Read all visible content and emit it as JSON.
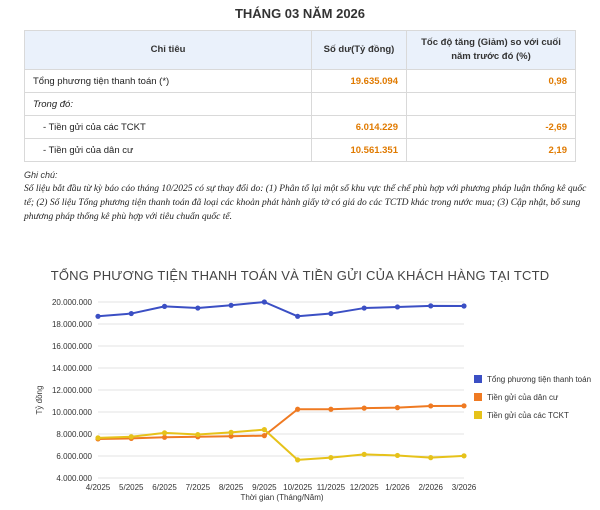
{
  "page_title": "THÁNG 03 NĂM 2026",
  "table": {
    "headers": [
      "Chỉ tiêu",
      "Số dư(Tỷ đồng)",
      "Tốc độ tăng (Giảm) so với cuối năm trước đó (%)"
    ],
    "rows": [
      {
        "label": "Tổng phương tiện thanh toán (*)",
        "value": "19.635.094",
        "rate": "0,98"
      },
      {
        "label": "Trong đó:",
        "value": "",
        "rate": ""
      },
      {
        "label": "- Tiền gửi của các TCKT",
        "value": "6.014.229",
        "rate": "-2,69"
      },
      {
        "label": "- Tiền gửi của dân cư",
        "value": "10.561.351",
        "rate": "2,19"
      }
    ]
  },
  "notes": {
    "label": "Ghi chú:",
    "text": "Số liệu bắt đầu từ kỳ báo cáo tháng 10/2025 có sự thay đổi do: (1) Phân tổ lại một số khu vực thể chế phù hợp với phương pháp luận thống kê quốc tế; (2) Số liệu Tổng phương tiện thanh toán đã loại các khoản phát hành giấy tờ có giá do các TCTD khác trong nước mua; (3) Cập nhật, bổ sung phương pháp thống kê phù hợp với tiêu chuẩn quốc tế."
  },
  "colors": {
    "accent_orange": "#e07a00",
    "header_bg": "#eaf1fb",
    "series_total": "#3b4fc4",
    "series_residents": "#ef7a22",
    "series_orgs": "#e6c21a"
  },
  "chart_data": {
    "type": "line",
    "title": "TỔNG PHƯƠNG TIỆN THANH TOÁN VÀ TIỀN GỬI CỦA KHÁCH HÀNG TẠI TCTD",
    "xlabel": "Thời gian (Tháng/Năm)",
    "ylabel": "Tỷ đồng",
    "ylim": [
      4000000,
      20000000
    ],
    "yticks": [
      "4.000.000",
      "6.000.000",
      "8.000.000",
      "10.000.000",
      "12.000.000",
      "14.000.000",
      "16.000.000",
      "18.000.000",
      "20.000.000"
    ],
    "x": [
      "4/2025",
      "5/2025",
      "6/2025",
      "7/2025",
      "8/2025",
      "9/2025",
      "10/2025",
      "11/2025",
      "12/2025",
      "1/2026",
      "2/2026",
      "3/2026"
    ],
    "legend_position": "right",
    "grid": true,
    "series": [
      {
        "name": "Tổng phương tiện thanh toán",
        "color": "#3b4fc4",
        "values": [
          18700000,
          18950000,
          19600000,
          19450000,
          19700000,
          20000000,
          18700000,
          18950000,
          19450000,
          19550000,
          19650000,
          19635094
        ]
      },
      {
        "name": "Tiền gửi của dân cư",
        "color": "#ef7a22",
        "values": [
          7550000,
          7600000,
          7700000,
          7750000,
          7800000,
          7850000,
          10250000,
          10250000,
          10350000,
          10400000,
          10550000,
          10561351
        ]
      },
      {
        "name": "Tiền gửi của các TCKT",
        "color": "#e6c21a",
        "values": [
          7650000,
          7750000,
          8100000,
          7950000,
          8150000,
          8400000,
          5650000,
          5850000,
          6150000,
          6050000,
          5850000,
          6014229
        ]
      }
    ]
  }
}
